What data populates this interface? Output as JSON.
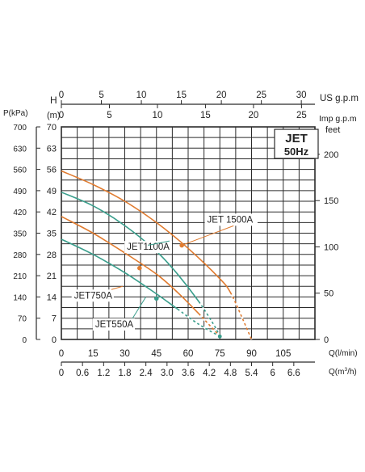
{
  "colors": {
    "background": "#ffffff",
    "grid": "#2b2b2b",
    "text": "#222222",
    "orange": "#e07b2f",
    "teal": "#3a9e8c"
  },
  "chart_data": {
    "type": "line",
    "title": "JET",
    "subtitle": "50Hz",
    "grid": true,
    "xlim": [
      0,
      120
    ],
    "ylim": [
      0,
      70
    ],
    "axes": {
      "left_outer_label": "P(kPa)",
      "left_outer_ticks": [
        "0",
        "70",
        "140",
        "210",
        "280",
        "350",
        "420",
        "490",
        "560",
        "630",
        "700"
      ],
      "left_inner_label_top": "H",
      "left_inner_label": "(m)",
      "left_inner_ticks": [
        "0",
        "7",
        "14",
        "21",
        "28",
        "35",
        "42",
        "49",
        "56",
        "63",
        "70"
      ],
      "right_label": "feet",
      "right_ticks": [
        "0",
        "50",
        "100",
        "150",
        "200"
      ],
      "right_tick_values_m": [
        0,
        15.24,
        30.48,
        45.72,
        60.96
      ],
      "top1_label": "US g.p.m",
      "top1_ticks": [
        "0",
        "5",
        "10",
        "15",
        "20",
        "25",
        "30"
      ],
      "top1_tick_values_lmin": [
        0,
        18.93,
        37.85,
        56.78,
        75.71,
        94.64,
        113.56
      ],
      "top2_label": "Imp g.p.m",
      "top2_ticks": [
        "0",
        "5",
        "10",
        "15",
        "20",
        "25"
      ],
      "top2_tick_values_lmin": [
        0,
        22.73,
        45.46,
        68.19,
        90.92,
        113.65
      ],
      "bottom1_label": "Q(l/min)",
      "bottom1_ticks": [
        "0",
        "15",
        "30",
        "45",
        "60",
        "75",
        "90",
        "105"
      ],
      "bottom2_label_main": "Q(m",
      "bottom2_label_sup": "3",
      "bottom2_label_end": "/h)",
      "bottom2_ticks": [
        "0",
        "0.6",
        "1.2",
        "1.8",
        "2.4",
        "3.0",
        "3.6",
        "4.2",
        "4.8",
        "5.4",
        "6",
        "6.6"
      ]
    },
    "series": [
      {
        "name": "JET 1500A",
        "color": "#e07b2f",
        "x": [
          0,
          15,
          30,
          45,
          60,
          75,
          80,
          85,
          90
        ],
        "y": [
          55.5,
          51,
          45.5,
          38.5,
          30,
          20,
          15.5,
          8,
          0
        ],
        "marker": [
          57,
          31
        ],
        "tail_from_x": 84
      },
      {
        "name": "JET1100A",
        "color": "#3a9e8c",
        "x": [
          0,
          15,
          30,
          45,
          55,
          65,
          72,
          75
        ],
        "y": [
          48.5,
          44,
          37.5,
          29,
          21.5,
          12.5,
          5,
          1
        ],
        "marker": null,
        "tail_from_x": 69
      },
      {
        "name": "JET750A",
        "color": "#e07b2f",
        "x": [
          0,
          15,
          30,
          45,
          55,
          65,
          75
        ],
        "y": [
          40.5,
          35,
          28.5,
          21.5,
          15.5,
          8.5,
          1
        ],
        "marker": [
          37,
          23.5
        ],
        "tail_from_x": 68
      },
      {
        "name": "JET550A",
        "color": "#3a9e8c",
        "x": [
          0,
          15,
          30,
          45,
          55,
          65,
          75
        ],
        "y": [
          33,
          28,
          22,
          15,
          10,
          5,
          1
        ],
        "marker": [
          45,
          13.5
        ],
        "tail_from_x": 62
      }
    ],
    "annotations": [
      {
        "text": "JET 1500A",
        "series": 0,
        "text_x": 69,
        "text_y": 38.5,
        "point_x": 57,
        "point_y": 31
      },
      {
        "text": "JET1100A",
        "series": 1,
        "text_x": 31,
        "text_y": 29.5,
        "point_x": 41,
        "point_y": 31
      },
      {
        "text": "JET750A",
        "series": 2,
        "text_x": 6,
        "text_y": 13.5,
        "point_x": 29,
        "point_y": 17.5
      },
      {
        "text": "JET550A",
        "series": 3,
        "text_x": 16,
        "text_y": 4,
        "point_x": 40,
        "point_y": 14
      }
    ]
  }
}
